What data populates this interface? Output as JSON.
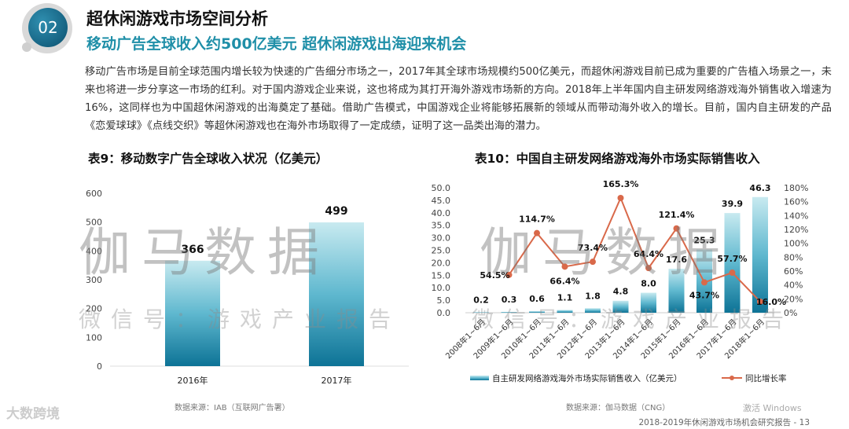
{
  "header": {
    "badge": "02",
    "title": "超休闲游戏市场空间分析",
    "subtitle": "移动广告全球收入约500亿美元 超休闲游戏出海迎来机会"
  },
  "paragraph": "移动广告市场是目前全球范围内增长较为快速的广告细分市场之一，2017年其全球市场规模约500亿美元，而超休闲游戏目前已成为重要的广告植入场景之一，未来也将进一步分享这一市场的红利。对于国内游戏企业来说，这也将成为其打开海外游戏市场新的方向。2018年上半年国内自主研发网络游戏海外销售收入增速为16%，这同样也为中国超休闲游戏的出海奠定了基础。借助广告模式，中国游戏企业将能够拓展新的领域从而带动海外收入的增长。目前，国内自主研发的产品《恋爱球球》《点线交织》等超休闲游戏也在海外市场取得了一定成绩，证明了这一品类出海的潜力。",
  "chart_data": [
    {
      "type": "bar",
      "title": "表9：移动数字广告全球收入状况（亿美元）",
      "categories": [
        "2016年",
        "2017年"
      ],
      "values": [
        366,
        499
      ],
      "ylim": [
        0,
        600
      ],
      "yticks": [
        0,
        100,
        200,
        300,
        400,
        500,
        600
      ],
      "grid": false,
      "source": "数据来源：IAB（互联网广告署）",
      "color": "#1a86a6"
    },
    {
      "type": "bar+line",
      "title": "表10：中国自主研发网络游戏海外市场实际销售收入",
      "categories": [
        "2008年1~6月",
        "2009年1~6月",
        "2010年1~6月",
        "2011年1~6月",
        "2012年1~6月",
        "2013年1~6月",
        "2014年1~6月",
        "2015年1~6月",
        "2016年1~6月",
        "2017年1~6月",
        "2018年1~6月"
      ],
      "series": [
        {
          "name": "自主研发网络游戏海外市场实际销售收入（亿美元）",
          "type": "bar",
          "axis": "left",
          "values": [
            0.2,
            0.3,
            0.6,
            1.1,
            1.8,
            4.8,
            8.0,
            17.6,
            25.3,
            39.9,
            46.3
          ],
          "labels": [
            "0.2",
            "0.3",
            "0.6",
            "1.1",
            "1.8",
            "4.8",
            "8.0",
            "17.6",
            "25.3",
            "39.9",
            "46.3"
          ],
          "color": "#1a86a6"
        },
        {
          "name": "同比增长率",
          "type": "line",
          "axis": "right",
          "values": [
            null,
            54.5,
            114.7,
            66.4,
            73.4,
            165.3,
            64.4,
            121.4,
            43.7,
            57.7,
            16.0
          ],
          "labels": [
            "",
            "54.5%",
            "114.7%",
            "66.4%",
            "73.4%",
            "165.3%",
            "64.4%",
            "121.4%",
            "43.7%",
            "57.7%",
            "16.0%"
          ],
          "color": "#d9694a"
        }
      ],
      "ylim_left": [
        0,
        50
      ],
      "yticks_left": [
        "0.0",
        "5.0",
        "10.0",
        "15.0",
        "20.0",
        "25.0",
        "30.0",
        "35.0",
        "40.0",
        "45.0",
        "50.0"
      ],
      "ylim_right": [
        0,
        180
      ],
      "yticks_right": [
        "0%",
        "20%",
        "40%",
        "60%",
        "80%",
        "100%",
        "120%",
        "140%",
        "160%",
        "180%"
      ],
      "grid": false,
      "legend": "bottom",
      "source": "数据来源：伽马数据（CNG）"
    }
  ],
  "watermark": {
    "main": "伽马数据",
    "sub": "微信号：游戏产业报告"
  },
  "logo": "大数跨境",
  "footer": "2018-2019年休闲游戏市场机会研究报告 - 13",
  "windows_notice": "激活 Windows"
}
